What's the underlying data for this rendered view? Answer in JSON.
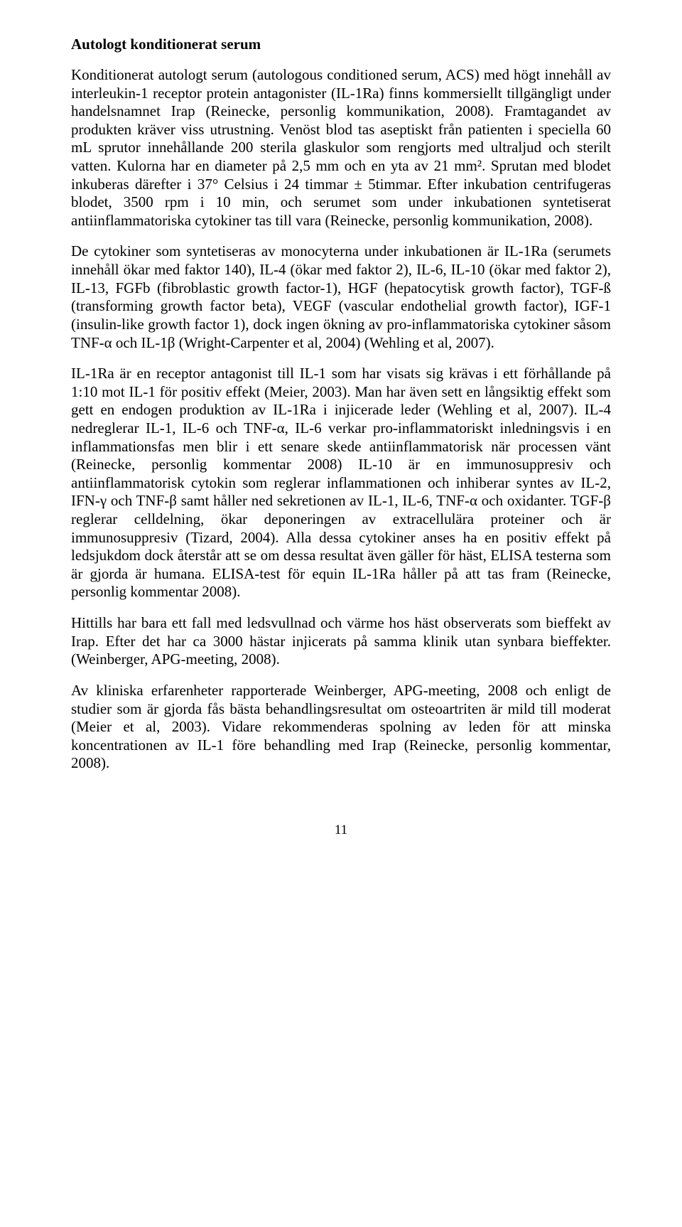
{
  "heading": "Autologt konditionerat serum",
  "p1": "Konditionerat autologt serum (autologous conditioned serum, ACS) med högt innehåll av interleukin-1 receptor protein antagonister (IL-1Ra) finns kommersiellt tillgängligt under handelsnamnet Irap (Reinecke, personlig kommunikation, 2008). Framtagandet av produkten kräver viss utrustning. Venöst blod tas aseptiskt från patienten i speciella 60 mL sprutor innehållande 200 sterila glaskulor som rengjorts med ultraljud och sterilt vatten. Kulorna har en diameter på 2,5 mm och en yta av 21 mm². Sprutan med blodet inkuberas därefter i 37° Celsius i 24 timmar ± 5timmar. Efter inkubation centrifugeras blodet, 3500 rpm i 10 min, och serumet som under inkubationen syntetiserat antiinflammatoriska cytokiner tas till vara (Reinecke, personlig kommunikation, 2008).",
  "p2": "De cytokiner som syntetiseras av monocyterna under inkubationen är IL-1Ra (serumets innehåll ökar med faktor 140), IL-4 (ökar med faktor 2), IL-6, IL-10 (ökar med faktor 2), IL-13, FGFb (fibroblastic growth factor-1), HGF (hepatocytisk growth factor), TGF-ß (transforming growth factor beta), VEGF (vascular endothelial growth factor), IGF-1 (insulin-like growth factor 1), dock ingen ökning av pro-inflammatoriska cytokiner såsom TNF-α och IL-1β (Wright-Carpenter et al, 2004) (Wehling et al, 2007).",
  "p3": "IL-1Ra är en receptor antagonist till IL-1 som har visats sig krävas i ett förhållande på 1:10 mot IL-1 för positiv effekt (Meier, 2003). Man har även sett en långsiktig effekt som gett en endogen produktion av IL-1Ra i injicerade leder (Wehling et al, 2007). IL-4 nedreglerar IL-1, IL-6 och TNF-α, IL-6 verkar pro-inflammatoriskt inledningsvis i en inflammationsfas men blir i ett senare skede antiinflammatorisk när processen vänt (Reinecke, personlig kommentar 2008) IL-10 är en immunosuppresiv och antiinflammatorisk cytokin som reglerar inflammationen och inhiberar syntes av IL-2, IFN-γ och TNF-β samt håller ned sekretionen av IL-1, IL-6, TNF-α och oxidanter. TGF-β reglerar celldelning, ökar deponeringen av extracellulära proteiner och är immunosuppresiv (Tizard, 2004). Alla dessa cytokiner anses ha en positiv effekt på ledsjukdom dock återstår att se om dessa resultat även gäller för häst, ELISA testerna som är gjorda är humana. ELISA-test för equin IL-1Ra håller på att tas fram (Reinecke, personlig kommentar 2008).",
  "p4": "Hittills har bara ett fall med ledsvullnad och värme hos häst observerats som bieffekt av Irap. Efter det har ca 3000 hästar injicerats på samma klinik utan synbara bieffekter. (Weinberger, APG-meeting, 2008).",
  "p5": "Av kliniska erfarenheter rapporterade Weinberger, APG-meeting, 2008 och enligt de studier som är gjorda fås bästa behandlingsresultat om osteoartriten är mild till moderat (Meier et al, 2003). Vidare rekommenderas spolning av leden för att minska koncentrationen av IL-1 före behandling med Irap (Reinecke, personlig kommentar, 2008).",
  "pagenum": "11"
}
